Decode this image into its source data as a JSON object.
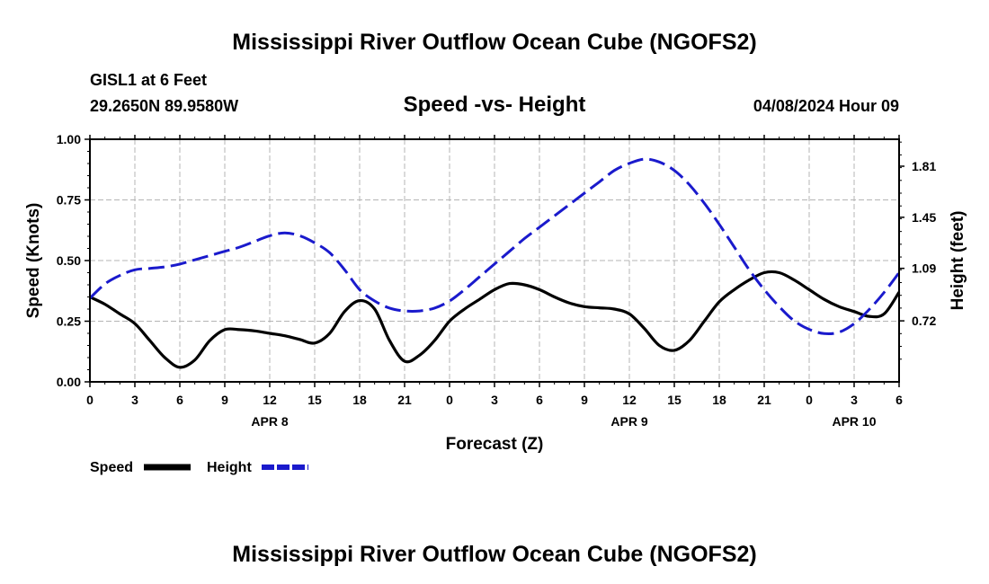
{
  "page": {
    "title": "Mississippi River Outflow Ocean Cube (NGOFS2)",
    "footer_title": "Mississippi River Outflow Ocean Cube (NGOFS2)",
    "station": "GISL1 at 6 Feet",
    "coords": "29.2650N  89.9580W",
    "subtitle": "Speed -vs- Height",
    "datetime": "04/08/2024 Hour 09"
  },
  "chart_data": {
    "type": "line",
    "title": "Speed -vs- Height",
    "xlabel": "Forecast (Z)",
    "ylabel": "Speed (Knots)",
    "y2label": "Height (feet)",
    "grid": true,
    "x_range_hours": [
      0,
      54
    ],
    "x_tick_hours": [
      0,
      3,
      6,
      9,
      12,
      15,
      18,
      21,
      24,
      27,
      30,
      33,
      36,
      39,
      42,
      45,
      48,
      51,
      54
    ],
    "x_tick_labels": [
      "0",
      "3",
      "6",
      "9",
      "12",
      "15",
      "18",
      "21",
      "0",
      "3",
      "6",
      "9",
      "12",
      "15",
      "18",
      "21",
      "0",
      "3",
      "6"
    ],
    "date_labels": [
      {
        "hour": 12,
        "label": "APR 8"
      },
      {
        "hour": 36,
        "label": "APR 9"
      },
      {
        "hour": 51,
        "label": "APR 10"
      }
    ],
    "ylim": [
      0,
      1
    ],
    "y_ticks": [
      0,
      0.25,
      0.5,
      0.75,
      1.0
    ],
    "y_tick_labels": [
      "0.00",
      "0.25",
      "0.50",
      "0.75",
      "1.00"
    ],
    "y2lim": [
      0.29,
      2.0
    ],
    "y2_ticks": [
      0.72,
      1.09,
      1.45,
      1.81
    ],
    "y2_tick_labels": [
      "0.72",
      "1.09",
      "1.45",
      "1.81"
    ],
    "legend": [
      {
        "label": "Speed",
        "color": "#000000",
        "style": "solid"
      },
      {
        "label": "Height",
        "color": "#1a1acc",
        "style": "dashed"
      }
    ],
    "series": [
      {
        "name": "Speed",
        "axis": "left",
        "color": "#000000",
        "x": [
          0,
          1,
          2,
          3,
          4,
          5,
          6,
          7,
          8,
          9,
          10,
          11,
          12,
          13,
          14,
          15,
          16,
          17,
          18,
          19,
          20,
          21,
          22,
          23,
          24,
          25,
          26,
          27,
          28,
          29,
          30,
          31,
          32,
          33,
          34,
          35,
          36,
          37,
          38,
          39,
          40,
          41,
          42,
          43,
          44,
          45,
          46,
          47,
          48,
          49,
          50,
          51,
          52,
          53,
          54
        ],
        "values": [
          0.35,
          0.32,
          0.28,
          0.24,
          0.17,
          0.1,
          0.06,
          0.09,
          0.17,
          0.215,
          0.215,
          0.21,
          0.2,
          0.19,
          0.175,
          0.16,
          0.2,
          0.29,
          0.335,
          0.3,
          0.17,
          0.085,
          0.11,
          0.17,
          0.25,
          0.3,
          0.34,
          0.38,
          0.405,
          0.4,
          0.38,
          0.35,
          0.325,
          0.31,
          0.305,
          0.3,
          0.28,
          0.22,
          0.15,
          0.13,
          0.17,
          0.25,
          0.33,
          0.38,
          0.42,
          0.45,
          0.45,
          0.42,
          0.38,
          0.34,
          0.31,
          0.29,
          0.27,
          0.28,
          0.37
        ]
      },
      {
        "name": "Height",
        "axis": "right",
        "color": "#1a1acc",
        "x": [
          0,
          1,
          2,
          3,
          4,
          5,
          6,
          7,
          8,
          9,
          10,
          11,
          12,
          13,
          14,
          15,
          16,
          17,
          18,
          19,
          20,
          21,
          22,
          23,
          24,
          25,
          26,
          27,
          28,
          29,
          30,
          31,
          32,
          33,
          34,
          35,
          36,
          37,
          38,
          39,
          40,
          41,
          42,
          43,
          44,
          45,
          46,
          47,
          48,
          49,
          50,
          51,
          52,
          53,
          54
        ],
        "values": [
          0.88,
          0.98,
          1.04,
          1.08,
          1.09,
          1.1,
          1.12,
          1.15,
          1.18,
          1.21,
          1.24,
          1.28,
          1.32,
          1.34,
          1.32,
          1.27,
          1.2,
          1.08,
          0.94,
          0.86,
          0.81,
          0.79,
          0.79,
          0.81,
          0.86,
          0.94,
          1.03,
          1.12,
          1.21,
          1.3,
          1.38,
          1.46,
          1.54,
          1.62,
          1.7,
          1.78,
          1.83,
          1.86,
          1.84,
          1.78,
          1.68,
          1.55,
          1.4,
          1.24,
          1.08,
          0.94,
          0.82,
          0.72,
          0.66,
          0.63,
          0.64,
          0.7,
          0.8,
          0.92,
          1.06
        ]
      }
    ]
  }
}
